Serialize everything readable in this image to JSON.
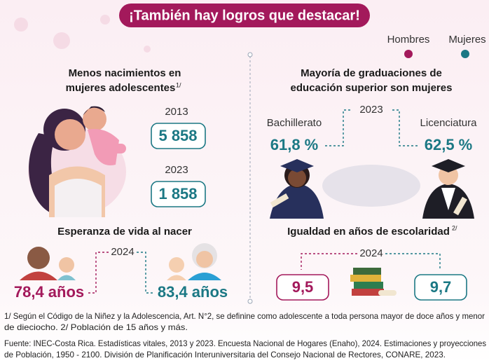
{
  "header": {
    "title": "¡También hay logros que destacar!"
  },
  "legend": [
    "Hombres",
    "Mujeres"
  ],
  "births": {
    "heading": [
      "Menos nacimientos en",
      "mujeres adolescentes"
    ],
    "note_ref": "1/",
    "items": [
      {
        "year": "2013",
        "value": "5 858"
      },
      {
        "year": "2023",
        "value": "1 858"
      }
    ]
  },
  "graduation": {
    "heading": [
      "Mayoría de graduaciones de",
      "educación superior son mujeres"
    ],
    "year": "2023",
    "items": [
      {
        "label": "Bachillerato",
        "value": "61,8 %"
      },
      {
        "label": "Licenciatura",
        "value": "62,5 %"
      }
    ]
  },
  "life": {
    "heading": "Esperanza de vida al nacer",
    "year": "2024",
    "men": "78,4 años",
    "women": "83,4 años"
  },
  "schooling": {
    "heading": "Igualdad en años de escolaridad",
    "note_ref": "2/",
    "year": "2024",
    "men": "9,5",
    "women": "9,7"
  },
  "footnotes": [
    "1/ Según el Código de la Niñez y la Adolescencia, Art. N°2, se definine como adolescente a toda persona mayor de doce años y menor",
    "de dieciocho. 2/ Población de 15 años y más.",
    "Fuente: INEC-Costa Rica. Estadísticas vitales, 2013 y 2023. Encuesta Nacional de Hogares (Enaho), 2024. Estimaciones y proyecciones",
    "de Población, 1950 - 2100. División de Planificación Interuniversitaria del Consejo Nacional de Rectores, CONARE, 2023."
  ]
}
